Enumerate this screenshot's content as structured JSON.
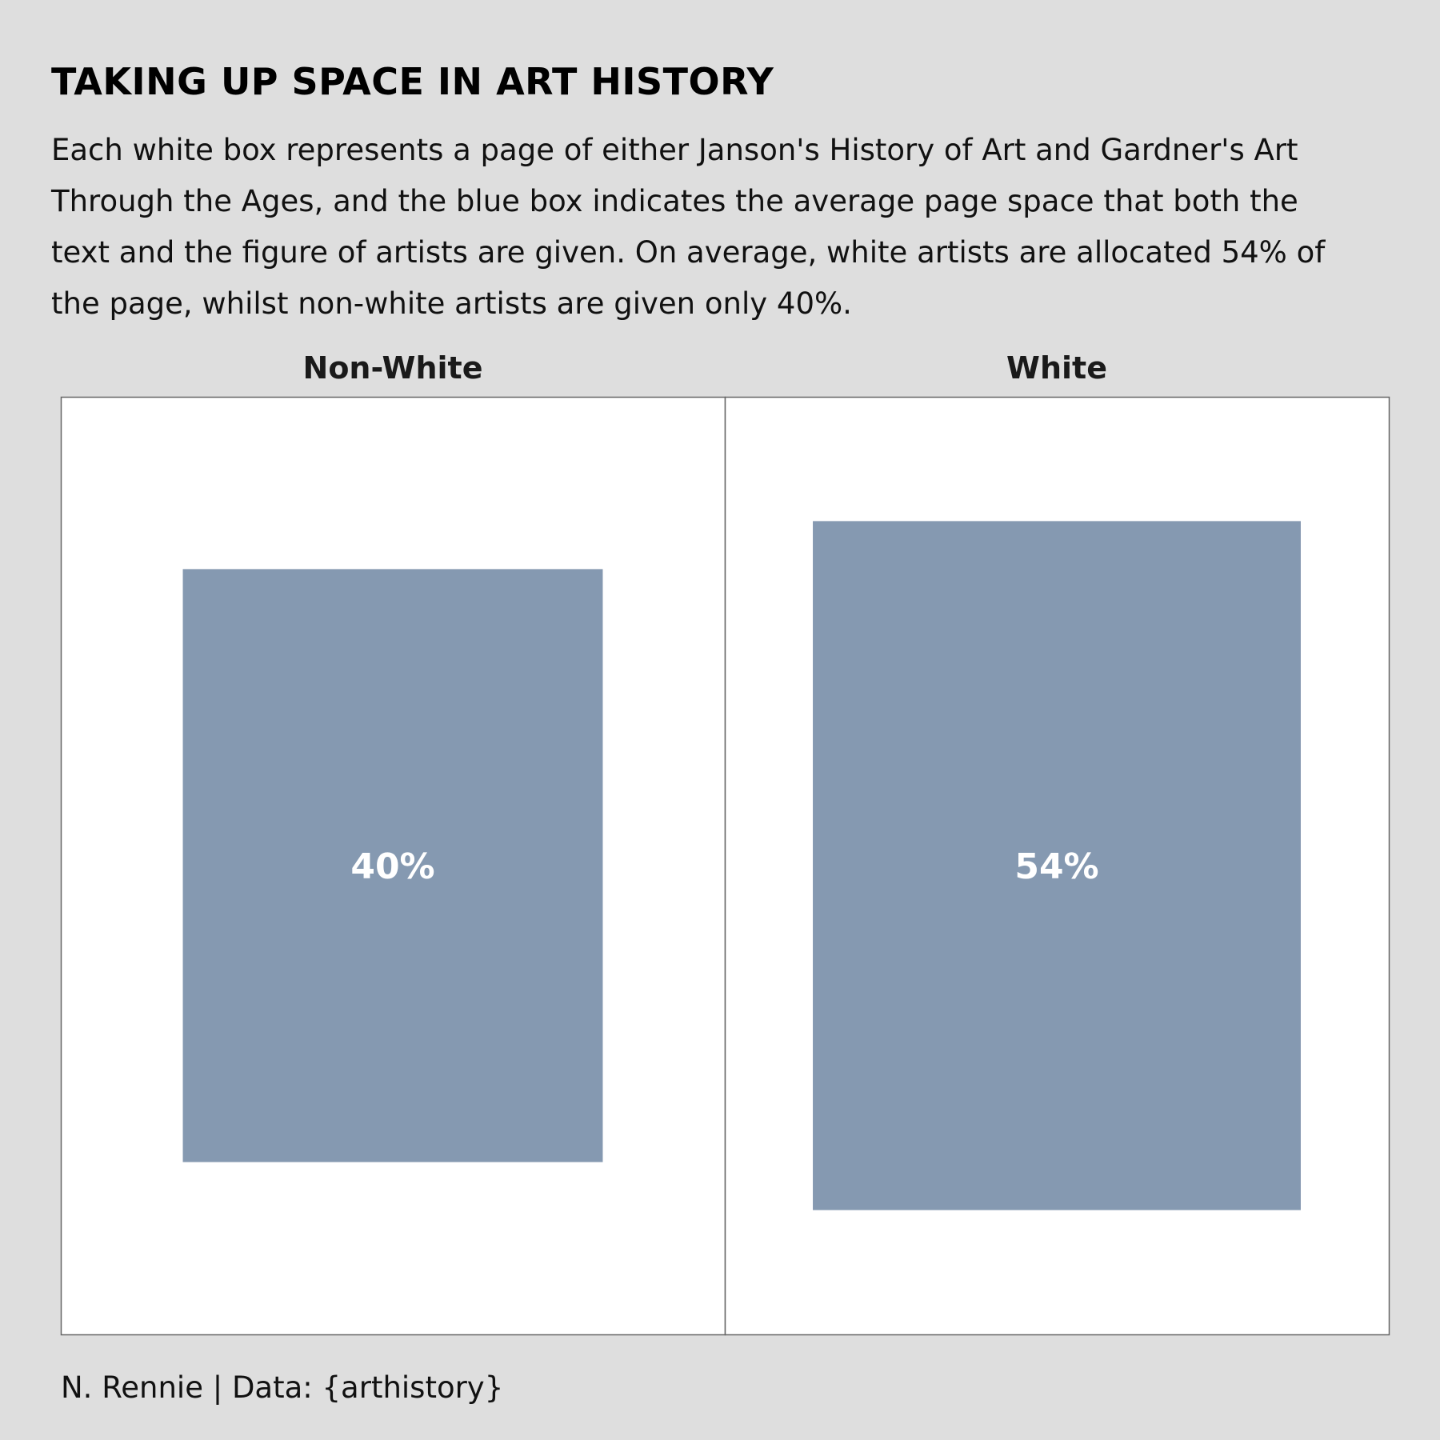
{
  "title": "TAKING UP SPACE IN ART HISTORY",
  "subtitle": "Each white box represents a page of either Janson's History of Art and Gardner's Art Through the Ages, and the blue box indicates the average page space that both the text and the figure of artists are given. On average, white artists are allocated 54% of the page, whilst non-white artists are given only 40%.",
  "caption": "N. Rennie | Data: {arthistory}",
  "colors": {
    "background": "#dedede",
    "page": "#ffffff",
    "page_border": "#666666",
    "fill": "#8599b1",
    "value_label": "#ffffff",
    "facet_label": "#1a1a1a"
  },
  "chart_data": {
    "type": "area",
    "categories": [
      "Non-White",
      "White"
    ],
    "values": [
      0.4,
      0.54
    ],
    "value_labels": [
      "40%",
      "54%"
    ],
    "unit": "fraction of page area",
    "title": "TAKING UP SPACE IN ART HISTORY",
    "xlabel": "",
    "ylabel": "",
    "grid": false,
    "legend": "none"
  }
}
